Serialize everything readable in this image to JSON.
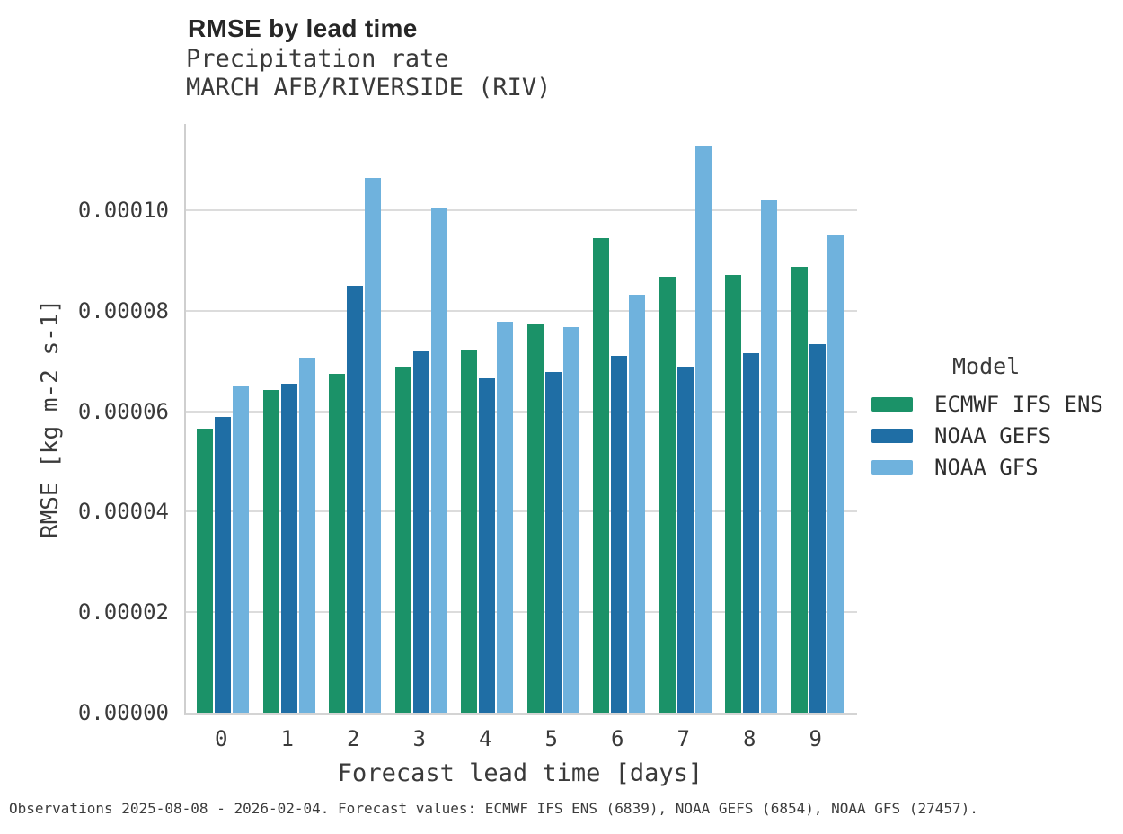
{
  "chart_data": {
    "type": "bar",
    "title": "RMSE by lead time",
    "subtitle_lines": {
      "line1": "Precipitation rate",
      "line2": "MARCH AFB/RIVERSIDE (RIV)"
    },
    "xlabel": "Forecast lead time [days]",
    "ylabel": "RMSE [kg m-2 s-1]",
    "categories": [
      "0",
      "1",
      "2",
      "3",
      "4",
      "5",
      "6",
      "7",
      "8",
      "9"
    ],
    "series": [
      {
        "name": "ECMWF IFS ENS",
        "color": "#1b9268",
        "values": [
          5.66e-05,
          6.42e-05,
          6.74e-05,
          6.89e-05,
          7.22e-05,
          7.74e-05,
          9.44e-05,
          8.67e-05,
          8.71e-05,
          8.88e-05
        ]
      },
      {
        "name": "NOAA GEFS",
        "color": "#1f6ea5",
        "values": [
          5.88e-05,
          6.54e-05,
          8.5e-05,
          7.2e-05,
          6.66e-05,
          6.79e-05,
          7.1e-05,
          6.88e-05,
          7.15e-05,
          7.33e-05
        ]
      },
      {
        "name": "NOAA GFS",
        "color": "#6fb2dd",
        "values": [
          6.52e-05,
          7.06e-05,
          0.0001065,
          0.0001005,
          7.78e-05,
          7.67e-05,
          8.32e-05,
          0.0001128,
          0.0001022,
          9.52e-05
        ]
      }
    ],
    "ylim": [
      0,
      0.0001172
    ],
    "yticks": {
      "values": [
        0,
        2e-05,
        4e-05,
        6e-05,
        8e-05,
        0.0001
      ],
      "labels": [
        "0.00000",
        "0.00002",
        "0.00004",
        "0.00006",
        "0.00008",
        "0.00010"
      ]
    },
    "grid": "horizontal",
    "legend": {
      "title": "Model",
      "position": "right"
    }
  },
  "caption": "Observations 2025-08-08 - 2026-02-04. Forecast values: ECMWF IFS ENS (6839), NOAA GEFS (6854), NOAA GFS (27457).",
  "colors": {
    "gridline": "#dcdcdc",
    "spine": "#cfcfcf",
    "text": "#3a3a3a",
    "title": "#262626",
    "background": "#ffffff"
  }
}
